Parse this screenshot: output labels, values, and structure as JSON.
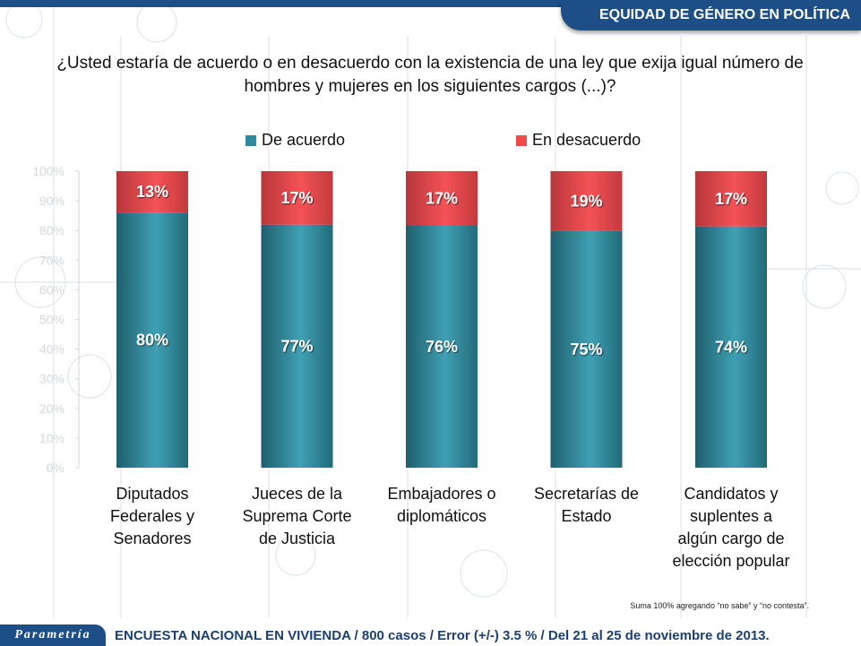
{
  "header": {
    "title": "EQUIDAD DE GÉNERO EN POLÍTICA"
  },
  "question": "¿Usted estaría de acuerdo o en desacuerdo con la existencia de una ley que exija igual número de hombres y mujeres en los siguientes cargos (...)?",
  "legend": [
    {
      "label": "De acuerdo",
      "color": "#2e8b9e"
    },
    {
      "label": "En desacuerdo",
      "color": "#f04a4c"
    }
  ],
  "footer": {
    "note": "Suma 100% agregando “no sabe” y “no contesta”.",
    "logo": "Parametría",
    "survey": "ENCUESTA NACIONAL EN VIVIENDA / 800 casos / Error (+/-) 3.5 % / Del 21 al 25 de noviembre de 2013."
  },
  "chart_data": {
    "type": "bar",
    "stacked": true,
    "normalized": true,
    "title": "¿Usted estaría de acuerdo o en desacuerdo con la existencia de una ley que exija igual número de hombres y mujeres en los siguientes cargos (...)?",
    "categories": [
      [
        "Diputados",
        "Federales y",
        "Senadores"
      ],
      [
        "Jueces de la",
        "Suprema Corte",
        "de Justicia"
      ],
      [
        "Embajadores o",
        "diplomáticos"
      ],
      [
        "Secretarías de",
        "Estado"
      ],
      [
        "Candidatos y",
        "suplentes a",
        "algún cargo de",
        "elección popular"
      ]
    ],
    "series": [
      {
        "name": "De acuerdo",
        "color": "#2e8b9e",
        "values": [
          80,
          77,
          76,
          75,
          74
        ],
        "labels": [
          "80%",
          "77%",
          "76%",
          "75%",
          "74%"
        ]
      },
      {
        "name": "En desacuerdo",
        "color": "#f04a4c",
        "values": [
          13,
          17,
          17,
          19,
          17
        ],
        "labels": [
          "13%",
          "17%",
          "17%",
          "19%",
          "17%"
        ]
      }
    ],
    "yticks": [
      "0%",
      "10%",
      "20%",
      "30%",
      "40%",
      "50%",
      "60%",
      "70%",
      "80%",
      "90%",
      "100%"
    ],
    "ylim": [
      0,
      100
    ],
    "xlabel": "",
    "ylabel": "",
    "legend_position": "top",
    "grid": false
  }
}
